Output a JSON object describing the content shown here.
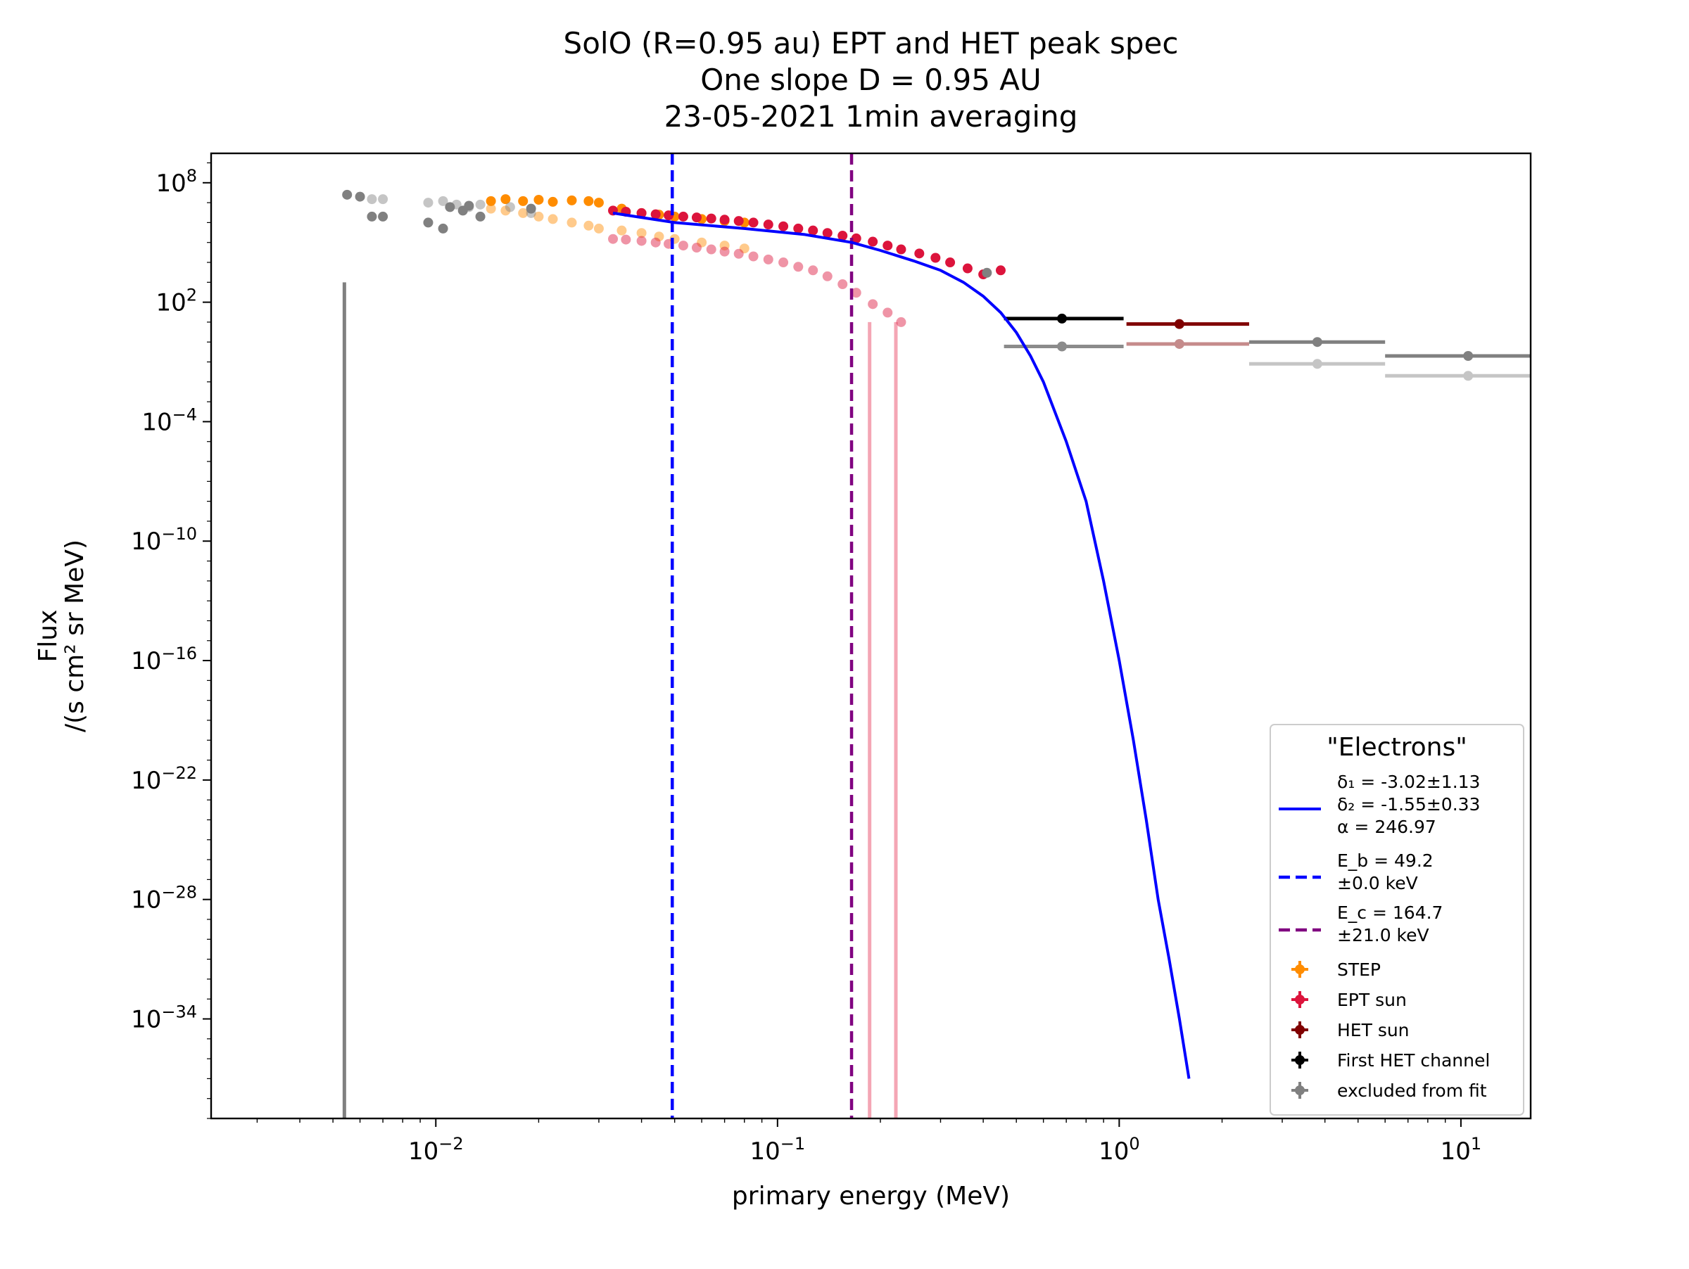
{
  "chart_data": {
    "type": "scatter",
    "title": [
      "SolO  (R=0.95 au) EPT and HET  peak spec",
      "One slope D = 0.95 AU",
      "23-05-2021  1min  averaging"
    ],
    "xlabel": "primary energy (MeV)",
    "ylabel": [
      "Flux",
      "/(s cm² sr MeV)"
    ],
    "x_scale": "log",
    "y_scale": "log",
    "xlim": [
      0.0022,
      16
    ],
    "ylim": [
      1e-39,
      3000000000.0
    ],
    "grid": false,
    "legend_position": "lower right",
    "x_ticks": [
      {
        "value": 0.01,
        "base": "10",
        "exp": "−2"
      },
      {
        "value": 0.1,
        "base": "10",
        "exp": "−1"
      },
      {
        "value": 1,
        "base": "10",
        "exp": "0"
      },
      {
        "value": 10,
        "base": "10",
        "exp": "1"
      }
    ],
    "y_ticks": [
      {
        "value": 100000000.0,
        "base": "10",
        "exp": "8"
      },
      {
        "value": 100.0,
        "base": "10",
        "exp": "2"
      },
      {
        "value": 0.0001,
        "base": "10",
        "exp": "−4"
      },
      {
        "value": 1e-10,
        "base": "10",
        "exp": "−10"
      },
      {
        "value": 1e-16,
        "base": "10",
        "exp": "−16"
      },
      {
        "value": 1e-22,
        "base": "10",
        "exp": "−22"
      },
      {
        "value": 1e-28,
        "base": "10",
        "exp": "−28"
      },
      {
        "value": 1e-34,
        "base": "10",
        "exp": "−34"
      }
    ],
    "legend": {
      "title": "\"Electrons\"",
      "fit_text": [
        "δ₁ = -3.02±1.13",
        "δ₂ = -1.55±0.33",
        "α = 246.97"
      ],
      "eb_text": [
        "E_b =  49.2",
        "±0.0 keV"
      ],
      "ec_text": [
        "E_c =  164.7",
        "±21.0 keV"
      ],
      "series_labels": [
        "STEP",
        "EPT sun",
        "HET sun",
        "First HET channel",
        "excluded from fit"
      ]
    },
    "colors": {
      "step": "#ff8c00",
      "ept": "#dc143c",
      "het": "#800000",
      "het_first": "#000000",
      "excluded": "#808080",
      "fit": "#0000ff",
      "eb": "#0000ff",
      "ec": "#800080"
    },
    "vertical_lines": [
      {
        "name": "E_b",
        "x": 0.0492,
        "color": "#0000ff"
      },
      {
        "name": "E_c",
        "x": 0.1647,
        "color": "#800080"
      }
    ],
    "fit_curve": {
      "x": [
        0.033,
        0.05,
        0.08,
        0.12,
        0.165,
        0.2,
        0.25,
        0.3,
        0.35,
        0.4,
        0.45,
        0.5,
        0.55,
        0.6,
        0.7,
        0.8,
        0.9,
        1.0,
        1.1,
        1.2,
        1.3,
        1.4,
        1.5,
        1.6
      ],
      "y": [
        3000000.0,
        1000000.0,
        500000.0,
        250000.0,
        100000.0,
        40000.0,
        12000.0,
        4000.0,
        1000.0,
        200.0,
        30,
        3,
        0.2,
        0.01,
        1e-05,
        1e-08,
        1e-12,
        1e-16,
        1e-20,
        1e-24,
        1e-28,
        1e-31,
        1e-34,
        1e-37
      ]
    },
    "series": [
      {
        "name": "STEP",
        "color": "#ff8c00",
        "x": [
          0.0145,
          0.016,
          0.018,
          0.02,
          0.022,
          0.025,
          0.028,
          0.03,
          0.035,
          0.04,
          0.045,
          0.05,
          0.06,
          0.07,
          0.08
        ],
        "y": [
          12000000.0,
          15000000.0,
          12000000.0,
          14000000.0,
          11000000.0,
          13000000.0,
          12000000.0,
          10000000.0,
          5000000.0,
          3000000.0,
          2500000.0,
          2000000.0,
          1500000.0,
          1200000.0,
          1000000.0
        ]
      },
      {
        "name": "STEP (faint)",
        "color": "#ff8c00",
        "faint": true,
        "x": [
          0.0145,
          0.016,
          0.018,
          0.02,
          0.022,
          0.025,
          0.028,
          0.03,
          0.035,
          0.04,
          0.045,
          0.05,
          0.06,
          0.07,
          0.08
        ],
        "y": [
          5000000.0,
          4000000.0,
          3000000.0,
          2000000.0,
          1500000.0,
          1000000.0,
          700000.0,
          500000.0,
          400000.0,
          300000.0,
          200000.0,
          150000.0,
          100000.0,
          70000.0,
          50000.0
        ]
      },
      {
        "name": "EPT sun",
        "color": "#dc143c",
        "x": [
          0.033,
          0.036,
          0.04,
          0.044,
          0.048,
          0.053,
          0.058,
          0.064,
          0.07,
          0.077,
          0.085,
          0.094,
          0.104,
          0.115,
          0.127,
          0.14,
          0.155,
          0.17,
          0.19,
          0.21,
          0.23,
          0.26,
          0.29,
          0.32,
          0.36,
          0.4,
          0.45
        ],
        "y": [
          4000000.0,
          3500000.0,
          3000000.0,
          2600000.0,
          2300000.0,
          2000000.0,
          1800000.0,
          1600000.0,
          1400000.0,
          1200000.0,
          1000000.0,
          800000.0,
          650000.0,
          500000.0,
          400000.0,
          300000.0,
          220000.0,
          160000.0,
          110000.0,
          70000.0,
          45000.0,
          28000.0,
          17000.0,
          10000.0,
          5000.0,
          2500.0,
          4000.0
        ]
      },
      {
        "name": "EPT sun (faint)",
        "color": "#dc143c",
        "faint": true,
        "x": [
          0.033,
          0.036,
          0.04,
          0.044,
          0.048,
          0.053,
          0.058,
          0.064,
          0.07,
          0.077,
          0.085,
          0.094,
          0.104,
          0.115,
          0.127,
          0.14,
          0.155,
          0.17,
          0.19,
          0.21,
          0.23
        ],
        "y": [
          150000.0,
          140000.0,
          120000.0,
          100000.0,
          85000.0,
          70000.0,
          55000.0,
          45000.0,
          35000.0,
          27000.0,
          20000.0,
          14000.0,
          10000.0,
          6000.0,
          4000.0,
          2000.0,
          800,
          300,
          80,
          30,
          10
        ]
      },
      {
        "name": "HET sun",
        "color": "#800000",
        "x": [
          1.5
        ],
        "y": [
          8
        ],
        "xerr": [
          [
            1.05,
            2.4
          ]
        ]
      },
      {
        "name": "HET sun (faint)",
        "color": "#800000",
        "faint": true,
        "x": [
          1.5
        ],
        "y": [
          0.8
        ],
        "xerr": [
          [
            1.05,
            2.4
          ]
        ]
      },
      {
        "name": "First HET channel",
        "color": "#000000",
        "x": [
          0.68
        ],
        "y": [
          15
        ],
        "xerr": [
          [
            0.46,
            1.03
          ]
        ]
      },
      {
        "name": "First HET channel (faint)",
        "color": "#000000",
        "faint": true,
        "x": [
          0.68
        ],
        "y": [
          0.6
        ],
        "xerr": [
          [
            0.46,
            1.03
          ]
        ]
      },
      {
        "name": "excluded from fit",
        "color": "#808080",
        "x": [
          0.0055,
          0.006,
          0.0065,
          0.007,
          0.0095,
          0.0105,
          0.011,
          0.012,
          0.0125,
          0.0135,
          0.019,
          0.41,
          3.8,
          10.5
        ],
        "y": [
          25000000.0,
          20000000.0,
          2000000.0,
          2000000.0,
          1000000.0,
          500000.0,
          6000000.0,
          4000000.0,
          7000000.0,
          2000000.0,
          5000000.0,
          3000.0,
          1,
          0.2
        ],
        "xerr": [
          null,
          null,
          null,
          null,
          null,
          null,
          null,
          null,
          null,
          null,
          null,
          null,
          [
            2.4,
            6.0
          ],
          [
            6.0,
            16
          ]
        ]
      },
      {
        "name": "excluded from fit (faint)",
        "color": "#808080",
        "faint": true,
        "x": [
          0.0065,
          0.007,
          0.0095,
          0.0105,
          0.0115,
          0.0125,
          0.0135,
          0.0165,
          0.019,
          3.8,
          10.5
        ],
        "y": [
          15000000.0,
          15000000.0,
          10000000.0,
          12000000.0,
          8000000.0,
          6000000.0,
          8000000.0,
          6000000.0,
          3000000.0,
          0.08,
          0.02
        ],
        "xerr": [
          null,
          null,
          null,
          null,
          null,
          null,
          null,
          null,
          null,
          [
            2.4,
            6.0
          ],
          [
            6.0,
            16
          ]
        ]
      }
    ],
    "error_bars": [
      {
        "x": 0.0054,
        "y_low": 1e-39,
        "y_high": 1000.0,
        "color": "#808080"
      },
      {
        "x": 0.186,
        "y_low": 1e-39,
        "y_high": 10.0,
        "color": "#f4a6b5"
      },
      {
        "x": 0.222,
        "y_low": 1e-39,
        "y_high": 10.0,
        "color": "#f4a6b5"
      }
    ]
  }
}
